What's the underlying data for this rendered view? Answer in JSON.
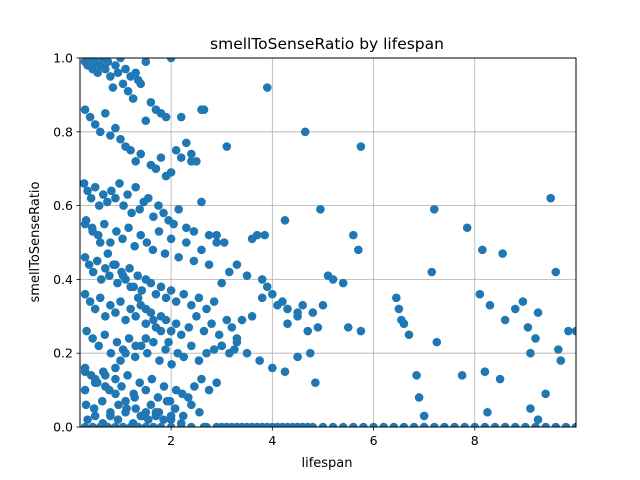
{
  "chart_data": {
    "type": "scatter",
    "title": "smellToSenseRatio by lifespan",
    "xlabel": "lifespan",
    "ylabel": "smellToSenseRatio",
    "xlim": [
      0.2,
      10.0
    ],
    "ylim": [
      0.0,
      1.0
    ],
    "x_ticks": [
      2,
      4,
      6,
      8
    ],
    "x_tick_labels": [
      "2",
      "4",
      "6",
      "8"
    ],
    "y_ticks": [
      0.0,
      0.2,
      0.4,
      0.6,
      0.8,
      1.0
    ],
    "y_tick_labels": [
      "0.0",
      "0.2",
      "0.4",
      "0.6",
      "0.8",
      "1.0"
    ],
    "grid": true,
    "marker_color": "#1f77b4",
    "series": [
      {
        "x": [
          0.3,
          0.35,
          0.4,
          0.45,
          0.5,
          0.55,
          0.6,
          0.65,
          0.7,
          0.75,
          0.8,
          0.85,
          0.9,
          0.95,
          1.0,
          1.05,
          1.1,
          1.15,
          1.2,
          1.25,
          1.3,
          1.35,
          1.4,
          1.5,
          1.6,
          1.7,
          1.8,
          1.9,
          2.0,
          2.1,
          2.2,
          2.3,
          2.4,
          2.5,
          0.3,
          0.4,
          0.5,
          0.6,
          0.7,
          0.8,
          0.9,
          1.0,
          1.1,
          1.2,
          1.3,
          1.4,
          1.5,
          1.6,
          1.7,
          1.8,
          1.9,
          2.0,
          2.2,
          2.4,
          2.6,
          0.28,
          0.35,
          0.42,
          0.5,
          0.58,
          0.66,
          0.74,
          0.82,
          0.9,
          0.98,
          1.06,
          1.14,
          1.22,
          1.3,
          1.38,
          1.46,
          1.55,
          1.65,
          1.75,
          1.85,
          1.95,
          2.05,
          2.15,
          2.3,
          2.45,
          2.6,
          2.75,
          2.9,
          0.32,
          0.44,
          0.56,
          0.68,
          0.8,
          0.92,
          1.04,
          1.16,
          1.28,
          1.4,
          1.52,
          1.64,
          1.76,
          1.88,
          2.0,
          2.15,
          2.3,
          2.45,
          2.6,
          2.75,
          2.9,
          3.05,
          0.3,
          0.38,
          0.46,
          0.54,
          0.62,
          0.7,
          0.78,
          0.86,
          0.94,
          1.02,
          1.1,
          1.18,
          1.26,
          1.34,
          1.42,
          1.5,
          1.6,
          1.7,
          1.8,
          1.9,
          2.0,
          2.1,
          2.25,
          2.4,
          2.55,
          2.7,
          2.85,
          3.0,
          3.15,
          0.3,
          0.4,
          0.5,
          0.6,
          0.7,
          0.8,
          0.9,
          1.0,
          1.1,
          1.2,
          1.3,
          1.4,
          1.5,
          1.6,
          1.7,
          1.8,
          1.9,
          2.0,
          2.1,
          2.2,
          2.35,
          2.5,
          2.65,
          2.8,
          2.95,
          3.1,
          3.3,
          0.33,
          0.45,
          0.57,
          0.69,
          0.81,
          0.93,
          1.05,
          1.17,
          1.29,
          1.41,
          1.53,
          1.65,
          1.77,
          1.89,
          2.01,
          2.13,
          2.25,
          2.4,
          2.55,
          2.7,
          2.85,
          3.0,
          3.15,
          3.3,
          0.3,
          0.42,
          0.54,
          0.66,
          0.78,
          0.9,
          1.02,
          1.14,
          1.26,
          1.38,
          1.5,
          1.62,
          1.74,
          1.86,
          1.98,
          2.1,
          2.22,
          2.34,
          2.46,
          2.6,
          2.75,
          2.9,
          0.32,
          0.48,
          0.64,
          0.8,
          0.96,
          1.12,
          1.28,
          1.44,
          1.6,
          1.76,
          1.92,
          2.08,
          2.24,
          2.4,
          2.56,
          0.35,
          0.5,
          0.65,
          0.8,
          0.95,
          1.1,
          1.25,
          1.4,
          1.55,
          1.7,
          1.85,
          2.0,
          2.2,
          0.3,
          0.45,
          0.6,
          0.75,
          0.9,
          1.05,
          1.2,
          1.35,
          1.5,
          1.65,
          1.8,
          2.0,
          2.2,
          2.4,
          2.65,
          0.3,
          0.45,
          0.6,
          0.75,
          0.9,
          1.05,
          1.2,
          1.35,
          1.5,
          1.65,
          1.8,
          1.95,
          0.3,
          0.5,
          0.7,
          0.9,
          1.1,
          1.3,
          1.5,
          1.7,
          2.0,
          0.3,
          0.5,
          0.7,
          0.9,
          1.0,
          1.1,
          1.3,
          1.5,
          2.0,
          3.0,
          3.2,
          3.4,
          3.6,
          3.8,
          4.0,
          4.2,
          4.4,
          4.6,
          4.8,
          5.0,
          5.2,
          5.4,
          5.6,
          5.8,
          6.0,
          6.2,
          6.4,
          6.6,
          6.8,
          7.0,
          7.2,
          7.4,
          7.6,
          7.8,
          8.0,
          8.2,
          8.4,
          8.6,
          8.8,
          9.0,
          9.2,
          9.4,
          9.6,
          9.8,
          10.0,
          2.7,
          2.9,
          3.1,
          3.3,
          3.5,
          3.7,
          3.9,
          4.1,
          4.3,
          4.5,
          4.7,
          3.1,
          3.6,
          3.9,
          4.65,
          5.75,
          4.95,
          4.25,
          2.65,
          3.85,
          3.7,
          3.3,
          3.5,
          3.8,
          3.9,
          4.0,
          4.2,
          4.3,
          4.5,
          4.6,
          4.8,
          5.0,
          5.1,
          5.4,
          5.6,
          5.7,
          3.2,
          3.4,
          3.6,
          3.8,
          4.1,
          4.3,
          4.5,
          4.7,
          4.9,
          5.2,
          5.5,
          5.75,
          3.0,
          3.25,
          3.5,
          3.75,
          4.0,
          4.25,
          4.5,
          4.75,
          4.85,
          6.45,
          6.5,
          6.55,
          6.6,
          6.7,
          6.85,
          6.9,
          7.0,
          7.15,
          7.25,
          7.2,
          7.75,
          7.85,
          8.1,
          8.15,
          8.2,
          8.3,
          8.5,
          8.55,
          8.6,
          8.8,
          8.95,
          9.05,
          9.1,
          9.2,
          9.25,
          9.4,
          9.5,
          9.6,
          9.65,
          9.7,
          9.85,
          10.0,
          9.1,
          8.25,
          9.25
        ],
        "y": [
          0.99,
          0.98,
          1.0,
          0.97,
          0.99,
          0.96,
          0.98,
          1.0,
          0.97,
          0.99,
          0.95,
          0.92,
          0.98,
          0.96,
          1.0,
          0.93,
          0.97,
          0.91,
          0.95,
          0.89,
          0.96,
          0.94,
          0.93,
          0.99,
          0.88,
          0.86,
          0.85,
          0.84,
          1.0,
          0.75,
          0.73,
          0.77,
          0.74,
          0.72,
          0.86,
          0.84,
          0.82,
          0.8,
          0.85,
          0.79,
          0.81,
          0.78,
          0.76,
          0.75,
          0.72,
          0.74,
          0.83,
          0.71,
          0.7,
          0.73,
          0.68,
          0.69,
          0.84,
          0.72,
          0.86,
          0.66,
          0.64,
          0.62,
          0.65,
          0.6,
          0.63,
          0.61,
          0.64,
          0.62,
          0.66,
          0.6,
          0.63,
          0.58,
          0.65,
          0.59,
          0.61,
          0.62,
          0.57,
          0.6,
          0.58,
          0.56,
          0.55,
          0.59,
          0.54,
          0.53,
          0.61,
          0.52,
          0.5,
          0.56,
          0.54,
          0.52,
          0.55,
          0.5,
          0.53,
          0.51,
          0.54,
          0.49,
          0.52,
          0.5,
          0.48,
          0.53,
          0.47,
          0.51,
          0.46,
          0.5,
          0.45,
          0.48,
          0.44,
          0.52,
          0.5,
          0.46,
          0.44,
          0.42,
          0.45,
          0.4,
          0.43,
          0.41,
          0.44,
          0.39,
          0.42,
          0.4,
          0.43,
          0.38,
          0.41,
          0.37,
          0.4,
          0.39,
          0.36,
          0.38,
          0.35,
          0.37,
          0.34,
          0.36,
          0.33,
          0.35,
          0.32,
          0.34,
          0.39,
          0.42,
          0.36,
          0.34,
          0.32,
          0.35,
          0.3,
          0.33,
          0.31,
          0.34,
          0.29,
          0.32,
          0.3,
          0.33,
          0.28,
          0.31,
          0.27,
          0.3,
          0.29,
          0.26,
          0.28,
          0.25,
          0.27,
          0.3,
          0.26,
          0.28,
          0.25,
          0.29,
          0.24,
          0.26,
          0.24,
          0.22,
          0.25,
          0.2,
          0.23,
          0.21,
          0.24,
          0.19,
          0.22,
          0.2,
          0.23,
          0.18,
          0.21,
          0.17,
          0.2,
          0.19,
          0.22,
          0.18,
          0.2,
          0.21,
          0.22,
          0.2,
          0.23,
          0.16,
          0.14,
          0.12,
          0.15,
          0.1,
          0.13,
          0.11,
          0.14,
          0.09,
          0.12,
          0.1,
          0.13,
          0.08,
          0.11,
          0.07,
          0.1,
          0.09,
          0.08,
          0.11,
          0.13,
          0.1,
          0.12,
          0.06,
          0.05,
          0.07,
          0.04,
          0.06,
          0.05,
          0.08,
          0.03,
          0.06,
          0.04,
          0.07,
          0.05,
          0.03,
          0.06,
          0.04,
          0.02,
          0.03,
          0.01,
          0.03,
          0.02,
          0.04,
          0.01,
          0.03,
          0.02,
          0.04,
          0.02,
          0.03,
          0.01,
          0.0,
          0.0,
          0.0,
          0.0,
          0.0,
          0.0,
          0.0,
          0.0,
          0.0,
          0.0,
          0.0,
          0.0,
          0.0,
          0.0,
          0.0,
          0.55,
          0.53,
          0.5,
          0.47,
          0.44,
          0.41,
          0.38,
          0.35,
          0.32,
          0.29,
          0.26,
          0.23,
          0.15,
          0.13,
          0.11,
          0.09,
          0.07,
          0.05,
          0.04,
          0.03,
          0.02,
          0.1,
          0.12,
          0.14,
          0.16,
          0.18,
          0.2,
          0.22,
          0.24,
          0.26,
          0.0,
          0.0,
          0.0,
          0.0,
          0.0,
          0.0,
          0.0,
          0.0,
          0.0,
          0.0,
          0.0,
          0.0,
          0.0,
          0.0,
          0.0,
          0.0,
          0.0,
          0.0,
          0.0,
          0.0,
          0.0,
          0.0,
          0.0,
          0.0,
          0.0,
          0.0,
          0.0,
          0.0,
          0.0,
          0.0,
          0.0,
          0.0,
          0.0,
          0.0,
          0.0,
          0.0,
          0.0,
          0.0,
          0.0,
          0.0,
          0.0,
          0.0,
          0.0,
          0.0,
          0.0,
          0.0,
          0.0,
          0.76,
          0.51,
          0.92,
          0.8,
          0.76,
          0.59,
          0.56,
          0.86,
          0.52,
          0.52,
          0.44,
          0.41,
          0.4,
          0.38,
          0.36,
          0.34,
          0.32,
          0.3,
          0.33,
          0.31,
          0.33,
          0.41,
          0.39,
          0.52,
          0.48,
          0.27,
          0.29,
          0.3,
          0.35,
          0.33,
          0.28,
          0.31,
          0.26,
          0.27,
          0.4,
          0.27,
          0.26,
          0.22,
          0.21,
          0.2,
          0.18,
          0.16,
          0.15,
          0.19,
          0.2,
          0.12,
          0.35,
          0.32,
          0.29,
          0.28,
          0.25,
          0.14,
          0.08,
          0.03,
          0.42,
          0.23,
          0.59,
          0.14,
          0.54,
          0.36,
          0.48,
          0.15,
          0.33,
          0.13,
          0.47,
          0.29,
          0.32,
          0.34,
          0.27,
          0.2,
          0.24,
          0.31,
          0.09,
          0.62,
          0.42,
          0.21,
          0.18,
          0.26,
          0.26,
          0.05,
          0.04,
          0.02
        ]
      }
    ]
  }
}
